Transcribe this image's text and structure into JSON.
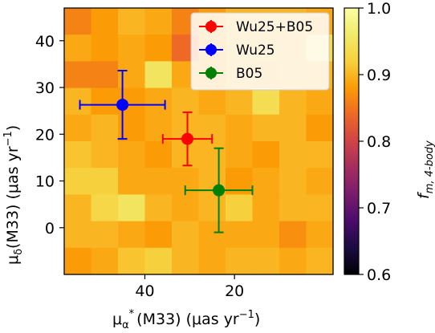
{
  "chart_data": {
    "type": "heatmap",
    "xlabel_text": "(M33) (μas yr",
    "ylabel_text": "(M33) (μas yr",
    "xlabel_sym": "μ",
    "xlabel_sub": "α",
    "xlabel_sup": "*",
    "ylabel_sym": "μ",
    "ylabel_sub": "δ",
    "exponent": "−1",
    "xlim": [
      58,
      -2
    ],
    "ylim": [
      -10,
      47
    ],
    "x_ticks": [
      40,
      20
    ],
    "y_ticks": [
      0,
      10,
      20,
      30,
      40
    ],
    "colorbar": {
      "label_main": "f",
      "label_sub": "m, 4-body",
      "range": [
        0.6,
        1.0
      ],
      "ticks": [
        0.6,
        0.7,
        0.8,
        0.9,
        1.0
      ],
      "colormap": "inferno"
    },
    "grid_values": [
      [
        0.86,
        0.88,
        0.9,
        0.89,
        0.86,
        0.88,
        0.9,
        0.9,
        0.9,
        0.89
      ],
      [
        0.89,
        0.88,
        0.89,
        0.88,
        0.84,
        0.88,
        0.9,
        0.9,
        0.9,
        0.94
      ],
      [
        0.86,
        0.86,
        0.89,
        0.95,
        0.89,
        0.88,
        0.9,
        0.89,
        0.9,
        0.9
      ],
      [
        0.9,
        0.88,
        0.88,
        0.89,
        0.9,
        0.89,
        0.9,
        0.94,
        0.9,
        0.89
      ],
      [
        0.89,
        0.9,
        0.88,
        0.89,
        0.9,
        0.9,
        0.89,
        0.9,
        0.9,
        0.88
      ],
      [
        0.91,
        0.9,
        0.89,
        0.88,
        0.9,
        0.9,
        0.89,
        0.88,
        0.9,
        0.9
      ],
      [
        0.92,
        0.92,
        0.89,
        0.89,
        0.89,
        0.9,
        0.88,
        0.89,
        0.9,
        0.89
      ],
      [
        0.9,
        0.93,
        0.95,
        0.9,
        0.89,
        0.9,
        0.92,
        0.89,
        0.9,
        0.9
      ],
      [
        0.9,
        0.9,
        0.89,
        0.88,
        0.9,
        0.89,
        0.89,
        0.89,
        0.87,
        0.89
      ],
      [
        0.88,
        0.89,
        0.91,
        0.92,
        0.9,
        0.89,
        0.9,
        0.9,
        0.89,
        0.9
      ]
    ],
    "series": [
      {
        "name": "Wu25+B05",
        "color": "#ff0000",
        "x": 30.5,
        "y": 19.0,
        "xerr": [
          5.5,
          5.5
        ],
        "yerr": [
          5.7,
          5.7
        ]
      },
      {
        "name": "Wu25",
        "color": "#0000ff",
        "x": 45.0,
        "y": 26.3,
        "xerr": [
          9.5,
          9.5
        ],
        "yerr": [
          7.3,
          7.3
        ]
      },
      {
        "name": "B05",
        "color": "#008000",
        "x": 23.5,
        "y": 8.0,
        "xerr": [
          7.5,
          7.5
        ],
        "yerr": [
          9.0,
          9.0
        ]
      }
    ],
    "legend_position": "upper right"
  }
}
